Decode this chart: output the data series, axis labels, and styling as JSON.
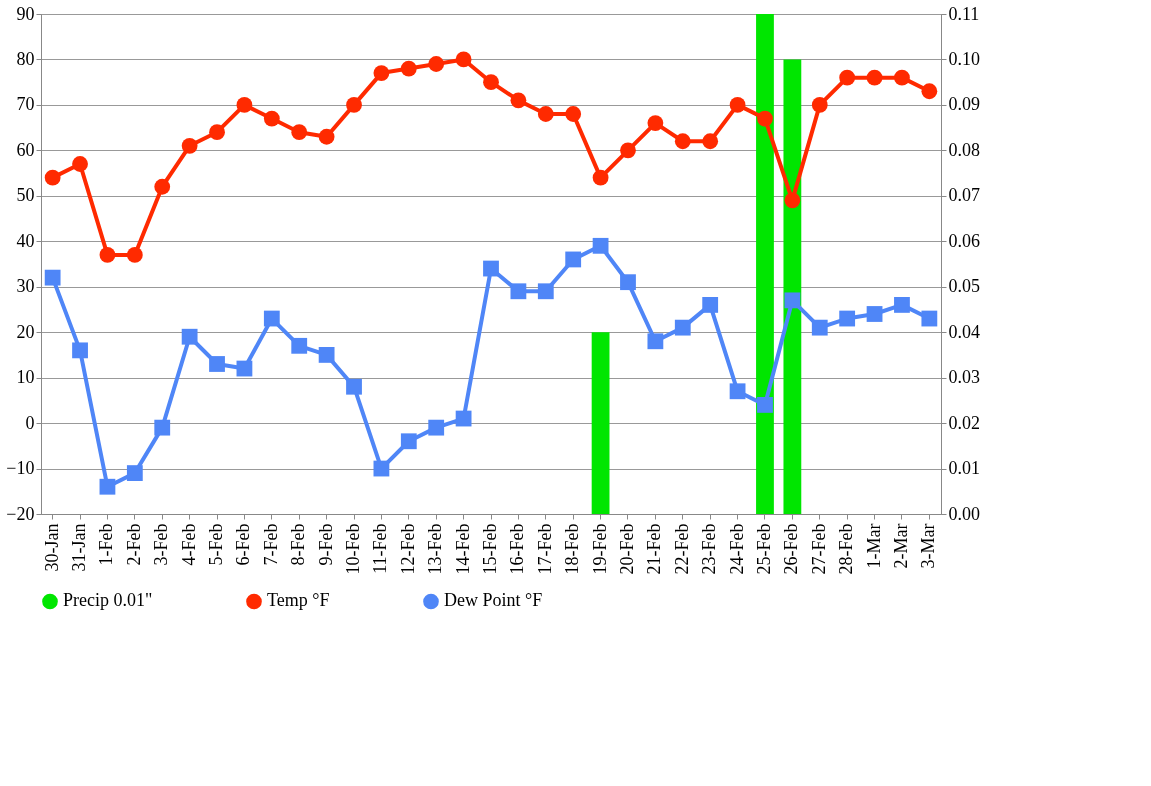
{
  "chart_data": {
    "type": "line",
    "categories": [
      "30-Jan",
      "31-Jan",
      "1-Feb",
      "2-Feb",
      "3-Feb",
      "4-Feb",
      "5-Feb",
      "6-Feb",
      "7-Feb",
      "8-Feb",
      "9-Feb",
      "10-Feb",
      "11-Feb",
      "12-Feb",
      "13-Feb",
      "14-Feb",
      "15-Feb",
      "16-Feb",
      "17-Feb",
      "18-Feb",
      "19-Feb",
      "20-Feb",
      "21-Feb",
      "22-Feb",
      "23-Feb",
      "24-Feb",
      "25-Feb",
      "26-Feb",
      "27-Feb",
      "28-Feb",
      "1-Mar",
      "2-Mar",
      "3-Mar"
    ],
    "series": [
      {
        "name": "Precip 0.01\"",
        "type": "bar",
        "axis": "y2",
        "color": "#00e600",
        "values": [
          null,
          null,
          null,
          null,
          null,
          null,
          null,
          null,
          null,
          null,
          null,
          null,
          null,
          null,
          null,
          null,
          null,
          null,
          null,
          null,
          0.04,
          null,
          null,
          null,
          null,
          null,
          0.11,
          0.1,
          null,
          null,
          null,
          null,
          null
        ]
      },
      {
        "name": "Temp °F",
        "marker": "circle",
        "color": "#ff2a00",
        "values": [
          54,
          57,
          37,
          37,
          52,
          61,
          64,
          70,
          67,
          64,
          63,
          70,
          77,
          78,
          79,
          80,
          75,
          71,
          68,
          68,
          54,
          60,
          66,
          62,
          62,
          70,
          67,
          49,
          70,
          76,
          76,
          76,
          73
        ]
      },
      {
        "name": "Dew Point °F",
        "marker": "square",
        "color": "#4f86f7",
        "values": [
          32,
          16,
          -14,
          -11,
          -1,
          19,
          13,
          12,
          23,
          17,
          15,
          8,
          -10,
          -4,
          -1,
          1,
          34,
          29,
          29,
          36,
          39,
          31,
          18,
          21,
          26,
          7,
          4,
          27,
          21,
          23,
          24,
          26,
          23
        ]
      }
    ],
    "ylim": [
      -20,
      90
    ],
    "yticks": [
      -20,
      -10,
      0,
      10,
      20,
      30,
      40,
      50,
      60,
      70,
      80,
      90
    ],
    "y2lim": [
      0,
      0.11
    ],
    "y2ticks": [
      {
        "value": 0,
        "label": "0.00"
      },
      {
        "value": 0.01,
        "label": "0.01"
      },
      {
        "value": 0.02,
        "label": "0.02"
      },
      {
        "value": 0.03,
        "label": "0.03"
      },
      {
        "value": 0.04,
        "label": "0.04"
      },
      {
        "value": 0.05,
        "label": "0.05"
      },
      {
        "value": 0.06,
        "label": "0.06"
      },
      {
        "value": 0.07,
        "label": "0.07"
      },
      {
        "value": 0.08,
        "label": "0.08"
      },
      {
        "value": 0.09,
        "label": "0.09"
      },
      {
        "value": 0.1,
        "label": "0.10"
      },
      {
        "value": 0.11,
        "label": "0.11"
      }
    ],
    "grid": "y",
    "legend": "bottom",
    "line_style": "solid"
  }
}
